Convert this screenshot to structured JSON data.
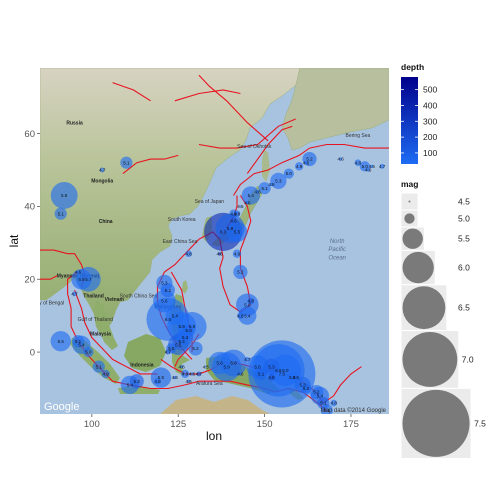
{
  "chart_data": {
    "type": "scatter",
    "title": "",
    "xlabel": "lon",
    "ylabel": "lat",
    "xlim": [
      85,
      186
    ],
    "ylim": [
      -17,
      78
    ],
    "x_ticks": [
      100,
      125,
      150,
      175
    ],
    "y_ticks": [
      0,
      20,
      40,
      60
    ],
    "basemap": "Google terrain map",
    "map_attribution": "Map data ©2014 Google",
    "google_logo": "Google",
    "map_labels": [
      {
        "text": "Russia",
        "lon": 95,
        "lat": 62.5,
        "bold": true
      },
      {
        "text": "Mongolia",
        "lon": 103,
        "lat": 46.5,
        "bold": true
      },
      {
        "text": "China",
        "lon": 104,
        "lat": 35.5,
        "bold": true
      },
      {
        "text": "South Korea",
        "lon": 126,
        "lat": 36,
        "bold": false
      },
      {
        "text": "Sea of Japan",
        "lon": 134,
        "lat": 41,
        "bold": false
      },
      {
        "text": "Sea of Okhotsk",
        "lon": 147,
        "lat": 56,
        "bold": false
      },
      {
        "text": "Bering Sea",
        "lon": 177,
        "lat": 59,
        "bold": false
      },
      {
        "text": "East China Sea",
        "lon": 125.5,
        "lat": 30,
        "bold": false
      },
      {
        "text": "Myanmar (Burma)",
        "lon": 96,
        "lat": 20.5,
        "bold": true
      },
      {
        "text": "Thailand",
        "lon": 100.5,
        "lat": 15,
        "bold": true
      },
      {
        "text": "Vietnam",
        "lon": 106.5,
        "lat": 14,
        "bold": true
      },
      {
        "text": "Philippines",
        "lon": 122,
        "lat": 12,
        "bold": true
      },
      {
        "text": "South China Sea",
        "lon": 113.5,
        "lat": 15,
        "bold": false
      },
      {
        "text": "Bay of Bengal",
        "lon": 87.5,
        "lat": 13,
        "bold": false
      },
      {
        "text": "Gulf of Thailand",
        "lon": 101,
        "lat": 8.5,
        "bold": false
      },
      {
        "text": "Malaysia",
        "lon": 102.5,
        "lat": 4.5,
        "bold": true
      },
      {
        "text": "Indonesia",
        "lon": 114.5,
        "lat": -4,
        "bold": true
      },
      {
        "text": "Arafura Sea",
        "lon": 134,
        "lat": -9,
        "bold": false
      }
    ],
    "ocean_labels": [
      {
        "text": "North",
        "lon": 171,
        "lat": 30
      },
      {
        "text": "Pacific",
        "lon": 171,
        "lat": 27.7
      },
      {
        "text": "Ocean",
        "lon": 171,
        "lat": 25.4
      }
    ],
    "fault_lines": [
      [
        [
          106,
          74
        ],
        [
          112,
          72
        ],
        [
          117,
          69
        ]
      ],
      [
        [
          124,
          69
        ],
        [
          131,
          71
        ],
        [
          138,
          72
        ],
        [
          143,
          71
        ]
      ],
      [
        [
          131,
          76
        ],
        [
          134,
          73
        ],
        [
          139,
          69
        ],
        [
          145,
          63
        ],
        [
          151,
          58
        ]
      ],
      [
        [
          109,
          49
        ],
        [
          113,
          52
        ],
        [
          117,
          53
        ],
        [
          121,
          53
        ],
        [
          125,
          54
        ]
      ],
      [
        [
          131,
          57
        ],
        [
          137,
          56
        ],
        [
          142,
          56
        ],
        [
          148,
          57
        ],
        [
          154,
          62
        ],
        [
          159,
          64
        ]
      ],
      [
        [
          145,
          49
        ],
        [
          148,
          53
        ],
        [
          151,
          57
        ],
        [
          155,
          61
        ],
        [
          158,
          62
        ]
      ],
      [
        [
          141,
          43
        ],
        [
          143,
          46
        ],
        [
          147,
          49
        ],
        [
          151,
          50
        ],
        [
          155,
          52
        ],
        [
          160,
          54
        ],
        [
          163,
          56
        ],
        [
          168,
          57
        ],
        [
          173,
          57
        ],
        [
          179,
          56
        ],
        [
          186,
          56
        ]
      ],
      [
        [
          143,
          43
        ],
        [
          145,
          40
        ],
        [
          146,
          36
        ],
        [
          145,
          33
        ],
        [
          143,
          28
        ],
        [
          143,
          23
        ],
        [
          145,
          18
        ],
        [
          146,
          13
        ],
        [
          143,
          11
        ],
        [
          140,
          13
        ],
        [
          138,
          18
        ],
        [
          137,
          23
        ],
        [
          138,
          26
        ],
        [
          137,
          31
        ]
      ],
      [
        [
          139,
          34
        ],
        [
          141,
          37
        ],
        [
          142,
          40
        ],
        [
          142,
          43
        ]
      ],
      [
        [
          137,
          31
        ],
        [
          135,
          33
        ],
        [
          131,
          31
        ],
        [
          128,
          28
        ],
        [
          124,
          24
        ],
        [
          121,
          22
        ]
      ],
      [
        [
          121,
          22
        ],
        [
          119,
          18
        ],
        [
          119,
          14
        ],
        [
          120,
          10
        ],
        [
          122,
          6
        ],
        [
          124,
          3
        ],
        [
          127,
          0
        ],
        [
          129,
          -2
        ]
      ],
      [
        [
          123,
          22
        ],
        [
          126,
          17
        ],
        [
          127,
          12
        ],
        [
          128,
          8
        ],
        [
          129,
          4
        ],
        [
          129,
          0
        ]
      ],
      [
        [
          131,
          5
        ],
        [
          129,
          2
        ],
        [
          127,
          0
        ],
        [
          125,
          -2
        ],
        [
          124,
          -4
        ]
      ],
      [
        [
          85,
          28
        ],
        [
          89,
          28
        ],
        [
          93,
          27
        ],
        [
          95,
          27
        ],
        [
          97,
          24
        ],
        [
          98,
          21
        ],
        [
          97,
          18
        ]
      ],
      [
        [
          96,
          22
        ],
        [
          93,
          20
        ],
        [
          93,
          16
        ],
        [
          94,
          12
        ],
        [
          94,
          7
        ],
        [
          96,
          3
        ],
        [
          99,
          -1
        ],
        [
          102,
          -4
        ],
        [
          106,
          -8
        ],
        [
          111,
          -9
        ],
        [
          117,
          -10
        ],
        [
          122,
          -10
        ],
        [
          127,
          -9
        ],
        [
          131,
          -8
        ]
      ],
      [
        [
          95,
          17
        ],
        [
          97,
          12
        ],
        [
          98,
          8
        ],
        [
          100,
          4
        ],
        [
          103,
          1
        ],
        [
          106,
          -2
        ],
        [
          110,
          -4
        ],
        [
          114,
          -6
        ],
        [
          119,
          -6
        ]
      ],
      [
        [
          120,
          -2
        ],
        [
          123,
          -4
        ],
        [
          127,
          -6
        ],
        [
          131,
          -6
        ],
        [
          134,
          -5
        ],
        [
          138,
          -3
        ],
        [
          142,
          -3
        ]
      ],
      [
        [
          131,
          -8
        ],
        [
          135,
          -8
        ],
        [
          140,
          -8
        ],
        [
          145,
          -9
        ],
        [
          150,
          -10
        ]
      ],
      [
        [
          142,
          -3
        ],
        [
          146,
          -4
        ],
        [
          150,
          -5
        ],
        [
          153,
          -5
        ],
        [
          156,
          -6
        ],
        [
          159,
          -7
        ],
        [
          162,
          -9
        ],
        [
          165,
          -11
        ],
        [
          167,
          -14
        ]
      ],
      [
        [
          150,
          -10
        ],
        [
          153,
          -11
        ],
        [
          157,
          -10
        ],
        [
          161,
          -11
        ],
        [
          164,
          -13
        ],
        [
          168,
          -16
        ]
      ],
      [
        [
          167,
          -14
        ],
        [
          170,
          -12
        ],
        [
          172,
          -9
        ],
        [
          175,
          -6
        ],
        [
          178,
          -4
        ]
      ],
      [
        [
          85,
          20
        ],
        [
          88,
          20
        ],
        [
          90,
          21
        ]
      ]
    ],
    "series": [
      {
        "lon": 92,
        "lat": 43,
        "mag": 5.8,
        "depth": 20
      },
      {
        "lon": 91,
        "lat": 38,
        "mag": 5.1,
        "depth": 15
      },
      {
        "lon": 110,
        "lat": 52,
        "mag": 5.1,
        "depth": 12
      },
      {
        "lon": 103,
        "lat": 50,
        "mag": 4.7,
        "depth": 10
      },
      {
        "lon": 163,
        "lat": 53,
        "mag": 5.2,
        "depth": 60
      },
      {
        "lon": 162,
        "lat": 52,
        "mag": 4.6,
        "depth": 40
      },
      {
        "lon": 160,
        "lat": 51,
        "mag": 4.9,
        "depth": 35
      },
      {
        "lon": 157,
        "lat": 49,
        "mag": 5.0,
        "depth": 30
      },
      {
        "lon": 154,
        "lat": 47,
        "mag": 5.3,
        "depth": 35
      },
      {
        "lon": 152,
        "lat": 46,
        "mag": 4.6,
        "depth": 40
      },
      {
        "lon": 150,
        "lat": 45,
        "mag": 5.1,
        "depth": 30
      },
      {
        "lon": 148,
        "lat": 44,
        "mag": 4.6,
        "depth": 40
      },
      {
        "lon": 146,
        "lat": 43,
        "mag": 5.4,
        "depth": 45
      },
      {
        "lon": 145,
        "lat": 41,
        "mag": 4.6,
        "depth": 50
      },
      {
        "lon": 143,
        "lat": 40,
        "mag": 4.5,
        "depth": 40
      },
      {
        "lon": 142,
        "lat": 38,
        "mag": 4.8,
        "depth": 45
      },
      {
        "lon": 141,
        "lat": 36,
        "mag": 4.6,
        "depth": 50
      },
      {
        "lon": 172,
        "lat": 53,
        "mag": 4.6,
        "depth": 30
      },
      {
        "lon": 177,
        "lat": 52,
        "mag": 4.8,
        "depth": 30
      },
      {
        "lon": 179,
        "lat": 51,
        "mag": 5.0,
        "depth": 40
      },
      {
        "lon": 181,
        "lat": 51,
        "mag": 4.6,
        "depth": 20
      },
      {
        "lon": 184,
        "lat": 51,
        "mag": 4.7,
        "depth": 10
      },
      {
        "lon": 180,
        "lat": 50,
        "mag": 4.6,
        "depth": 20
      },
      {
        "lon": 140,
        "lat": 34,
        "mag": 5.9,
        "depth": 80
      },
      {
        "lon": 142,
        "lat": 33,
        "mag": 5.5,
        "depth": 50
      },
      {
        "lon": 138,
        "lat": 33,
        "mag": 6.3,
        "depth": 350
      },
      {
        "lon": 141,
        "lat": 38,
        "mag": 4.9,
        "depth": 60
      },
      {
        "lon": 128,
        "lat": 27,
        "mag": 4.8,
        "depth": 20
      },
      {
        "lon": 137,
        "lat": 27,
        "mag": 4.6,
        "depth": 400
      },
      {
        "lon": 142,
        "lat": 27,
        "mag": 4.9,
        "depth": 30
      },
      {
        "lon": 143,
        "lat": 22,
        "mag": 5.2,
        "depth": 40
      },
      {
        "lon": 146,
        "lat": 14,
        "mag": 4.8,
        "depth": 100
      },
      {
        "lon": 145,
        "lat": 13,
        "mag": 5.6,
        "depth": 50
      },
      {
        "lon": 145,
        "lat": 10,
        "mag": 5.4,
        "depth": 40
      },
      {
        "lon": 143,
        "lat": 10,
        "mag": 4.8,
        "depth": 50
      },
      {
        "lon": 121,
        "lat": 19,
        "mag": 5.3,
        "depth": 40
      },
      {
        "lon": 122,
        "lat": 17,
        "mag": 5.2,
        "depth": 50
      },
      {
        "lon": 121,
        "lat": 14,
        "mag": 5.6,
        "depth": 40
      },
      {
        "lon": 122,
        "lat": 9,
        "mag": 6.5,
        "depth": 20
      },
      {
        "lon": 124,
        "lat": 10,
        "mag": 5.4,
        "depth": 15
      },
      {
        "lon": 126,
        "lat": 7,
        "mag": 5.9,
        "depth": 30
      },
      {
        "lon": 127,
        "lat": 4,
        "mag": 5.3,
        "depth": 40
      },
      {
        "lon": 128,
        "lat": 6,
        "mag": 5.0,
        "depth": 60
      },
      {
        "lon": 129,
        "lat": 7,
        "mag": 5.9,
        "depth": 30
      },
      {
        "lon": 126,
        "lat": 3,
        "mag": 5.4,
        "depth": 80
      },
      {
        "lon": 122,
        "lat": 0,
        "mag": 4.7,
        "depth": 100
      },
      {
        "lon": 123,
        "lat": 1,
        "mag": 5.0,
        "depth": 60
      },
      {
        "lon": 125,
        "lat": 2,
        "mag": 5.5,
        "depth": 90
      },
      {
        "lon": 130,
        "lat": 1,
        "mag": 5.2,
        "depth": 30
      },
      {
        "lon": 96,
        "lat": 22,
        "mag": 4.6,
        "depth": 20
      },
      {
        "lon": 97,
        "lat": 20,
        "mag": 5.5,
        "depth": 30
      },
      {
        "lon": 99,
        "lat": 20,
        "mag": 5.7,
        "depth": 20
      },
      {
        "lon": 95,
        "lat": 16,
        "mag": 4.7,
        "depth": 20
      },
      {
        "lon": 96,
        "lat": 3,
        "mag": 5.1,
        "depth": 30
      },
      {
        "lon": 97,
        "lat": 2,
        "mag": 5.4,
        "depth": 20
      },
      {
        "lon": 91,
        "lat": 3,
        "mag": 5.5,
        "depth": 30
      },
      {
        "lon": 99,
        "lat": 0,
        "mag": 5.0,
        "depth": 30
      },
      {
        "lon": 102,
        "lat": -4,
        "mag": 5.1,
        "depth": 30
      },
      {
        "lon": 104,
        "lat": -6,
        "mag": 4.9,
        "depth": 50
      },
      {
        "lon": 111,
        "lat": -9,
        "mag": 5.4,
        "depth": 40
      },
      {
        "lon": 113,
        "lat": -8,
        "mag": 5.2,
        "depth": 100
      },
      {
        "lon": 120,
        "lat": -7,
        "mag": 5.5,
        "depth": 60
      },
      {
        "lon": 119,
        "lat": -8,
        "mag": 4.8,
        "depth": 50
      },
      {
        "lon": 124,
        "lat": -7,
        "mag": 4.6,
        "depth": 100
      },
      {
        "lon": 126,
        "lat": -4,
        "mag": 4.6,
        "depth": 50
      },
      {
        "lon": 127,
        "lat": -6,
        "mag": 4.9,
        "depth": 30
      },
      {
        "lon": 129,
        "lat": -6,
        "mag": 4.6,
        "depth": 20
      },
      {
        "lon": 131,
        "lat": -6,
        "mag": 4.7,
        "depth": 150
      },
      {
        "lon": 128,
        "lat": -8,
        "mag": 4.6,
        "depth": 100
      },
      {
        "lon": 133,
        "lat": -4,
        "mag": 4.5,
        "depth": 60
      },
      {
        "lon": 137,
        "lat": -3,
        "mag": 5.6,
        "depth": 20
      },
      {
        "lon": 139,
        "lat": -4,
        "mag": 5.9,
        "depth": 40
      },
      {
        "lon": 141,
        "lat": -3,
        "mag": 5.8,
        "depth": 50
      },
      {
        "lon": 143,
        "lat": -6,
        "mag": 4.6,
        "depth": 40
      },
      {
        "lon": 145,
        "lat": -2,
        "mag": 4.7,
        "depth": 30
      },
      {
        "lon": 148,
        "lat": -4,
        "mag": 5.6,
        "depth": 40
      },
      {
        "lon": 149,
        "lat": -6,
        "mag": 5.1,
        "depth": 60
      },
      {
        "lon": 152,
        "lat": -4,
        "mag": 5.3,
        "depth": 80
      },
      {
        "lon": 154,
        "lat": -5,
        "mag": 6.9,
        "depth": 40
      },
      {
        "lon": 155,
        "lat": -6,
        "mag": 7.5,
        "depth": 40
      },
      {
        "lon": 156,
        "lat": -5,
        "mag": 6.0,
        "depth": 20
      },
      {
        "lon": 152,
        "lat": -7,
        "mag": 4.8,
        "depth": 150
      },
      {
        "lon": 158,
        "lat": -7,
        "mag": 5.0,
        "depth": 20
      },
      {
        "lon": 159,
        "lat": -7,
        "mag": 4.6,
        "depth": 30
      },
      {
        "lon": 161,
        "lat": -9,
        "mag": 5.3,
        "depth": 60
      },
      {
        "lon": 162,
        "lat": -10,
        "mag": 5.0,
        "depth": 30
      },
      {
        "lon": 165,
        "lat": -11,
        "mag": 5.2,
        "depth": 40
      },
      {
        "lon": 166,
        "lat": -12,
        "mag": 5.4,
        "depth": 60
      },
      {
        "lon": 167,
        "lat": -14,
        "mag": 5.1,
        "depth": 100
      },
      {
        "lon": 168,
        "lat": -16,
        "mag": 5.1,
        "depth": 30
      },
      {
        "lon": 170,
        "lat": -14,
        "mag": 4.8,
        "depth": 30
      }
    ],
    "legend": {
      "depth": {
        "title": "depth",
        "breaks": [
          500,
          400,
          300,
          200,
          100
        ],
        "labels": [
          "500",
          "400",
          "300",
          "200",
          "100"
        ],
        "limits": [
          30,
          580
        ],
        "low_color": "#1e6cf4",
        "high_color": "#00008b"
      },
      "mag": {
        "title": "mag",
        "breaks": [
          4.5,
          5.0,
          5.5,
          6.0,
          6.5,
          7.0,
          7.5
        ],
        "labels": [
          "4.5",
          "5.0",
          "5.5",
          "6.0",
          "6.5",
          "7.0",
          "7.5"
        ],
        "point_color": "#7a7a7a"
      }
    },
    "grid": false,
    "legend_position": "right"
  }
}
